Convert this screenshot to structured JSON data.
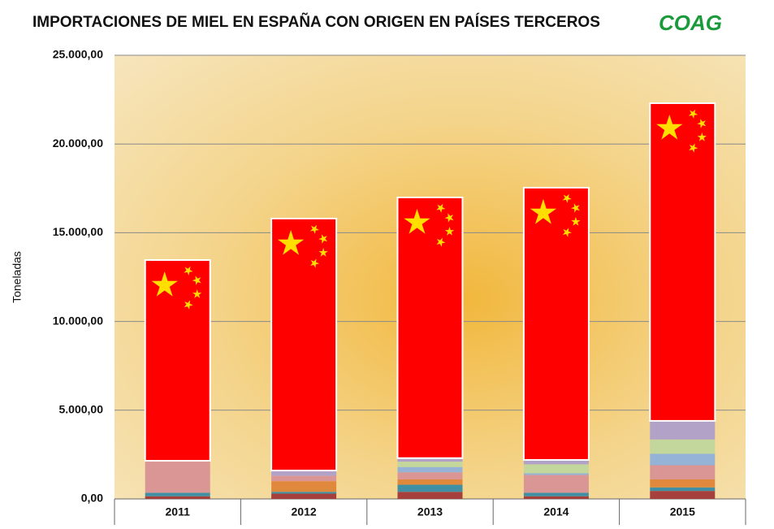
{
  "chart_data": {
    "type": "stacked_bar",
    "title": "IMPORTACIONES DE MIEL EN ESPAÑA CON ORIGEN EN PAÍSES TERCEROS",
    "logo": "COAG",
    "y_label": "Toneladas",
    "categories": [
      "2011",
      "2012",
      "2013",
      "2014",
      "2015"
    ],
    "series": [
      {
        "color": "#a5403c",
        "values": [
          150,
          300,
          400,
          150,
          450
        ]
      },
      {
        "color": "#3f8fa5",
        "values": [
          200,
          100,
          400,
          200,
          200
        ]
      },
      {
        "color": "#e0893c",
        "values": [
          0,
          600,
          300,
          0,
          450
        ]
      },
      {
        "color": "#d99694",
        "values": [
          1800,
          300,
          400,
          1000,
          800
        ]
      },
      {
        "color": "#95b3d7",
        "values": [
          0,
          0,
          300,
          100,
          650
        ]
      },
      {
        "color": "#c3d69b",
        "values": [
          0,
          0,
          300,
          500,
          800
        ]
      },
      {
        "color": "#b3a2c7",
        "values": [
          0,
          300,
          200,
          250,
          1050
        ]
      },
      {
        "color": "#ff0000",
        "values": [
          11310,
          14200,
          14690,
          15340,
          17900
        ]
      }
    ],
    "ylim": [
      0,
      25000
    ],
    "yticks": [
      {
        "value": 0,
        "label": "0,00"
      },
      {
        "value": 5000,
        "label": "5.000,00"
      },
      {
        "value": 10000,
        "label": "10.000,00"
      },
      {
        "value": 15000,
        "label": "15.000,00"
      },
      {
        "value": 20000,
        "label": "20.000,00"
      },
      {
        "value": 25000,
        "label": "25.000,00"
      }
    ],
    "grid": true
  }
}
